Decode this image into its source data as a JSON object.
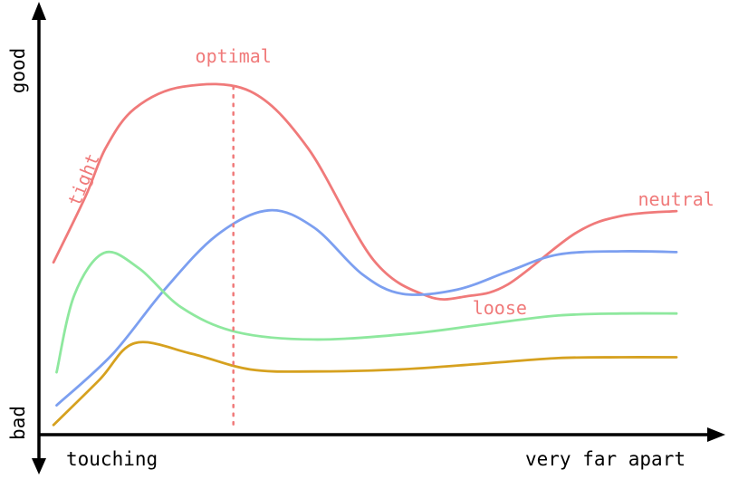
{
  "chart_data": {
    "type": "line",
    "title": "",
    "xlabel_left": "touching",
    "xlabel_right": "very far apart",
    "ylabel_bottom": "bad",
    "ylabel_top": "good",
    "x_range": [
      0,
      1
    ],
    "y_range": [
      0,
      1
    ],
    "grid": false,
    "legend": "none",
    "series": [
      {
        "color": "#f07a7a",
        "points": [
          [
            0.013,
            0.426
          ],
          [
            0.064,
            0.594
          ],
          [
            0.096,
            0.717
          ],
          [
            0.142,
            0.817
          ],
          [
            0.218,
            0.872
          ],
          [
            0.325,
            0.86
          ],
          [
            0.416,
            0.716
          ],
          [
            0.52,
            0.432
          ],
          [
            0.606,
            0.34
          ],
          [
            0.668,
            0.34
          ],
          [
            0.733,
            0.37
          ],
          [
            0.84,
            0.5
          ],
          [
            0.913,
            0.544
          ],
          [
            1.0,
            0.556
          ]
        ]
      },
      {
        "color": "#7c9ff0",
        "points": [
          [
            0.018,
            0.063
          ],
          [
            0.106,
            0.192
          ],
          [
            0.187,
            0.353
          ],
          [
            0.271,
            0.494
          ],
          [
            0.354,
            0.558
          ],
          [
            0.426,
            0.514
          ],
          [
            0.502,
            0.396
          ],
          [
            0.566,
            0.346
          ],
          [
            0.653,
            0.357
          ],
          [
            0.735,
            0.404
          ],
          [
            0.813,
            0.446
          ],
          [
            0.913,
            0.454
          ],
          [
            1.0,
            0.452
          ]
        ]
      },
      {
        "color": "#8ee89e",
        "points": [
          [
            0.018,
            0.147
          ],
          [
            0.046,
            0.343
          ],
          [
            0.093,
            0.45
          ],
          [
            0.149,
            0.41
          ],
          [
            0.216,
            0.311
          ],
          [
            0.303,
            0.249
          ],
          [
            0.426,
            0.23
          ],
          [
            0.579,
            0.245
          ],
          [
            0.702,
            0.27
          ],
          [
            0.813,
            0.291
          ],
          [
            0.913,
            0.296
          ],
          [
            1.0,
            0.296
          ]
        ]
      },
      {
        "color": "#d6a11f",
        "points": [
          [
            0.013,
            0.013
          ],
          [
            0.086,
            0.128
          ],
          [
            0.142,
            0.221
          ],
          [
            0.232,
            0.194
          ],
          [
            0.325,
            0.154
          ],
          [
            0.426,
            0.149
          ],
          [
            0.56,
            0.154
          ],
          [
            0.702,
            0.17
          ],
          [
            0.813,
            0.183
          ],
          [
            0.913,
            0.185
          ],
          [
            1.0,
            0.185
          ]
        ]
      }
    ],
    "reference_line": {
      "x": 0.298,
      "color": "#f07a7a",
      "style": "dotted"
    },
    "annotations": [
      {
        "text": "optimal",
        "x": 0.298,
        "y": 0.933,
        "color": "#f07a7a",
        "rotation": 0,
        "anchor": "middle"
      },
      {
        "text": "tight",
        "x": 0.07,
        "y": 0.63,
        "color": "#f07a7a",
        "rotation": -68,
        "anchor": "middle"
      },
      {
        "text": "neutral",
        "x": 1.06,
        "y": 0.57,
        "color": "#f07a7a",
        "rotation": 0,
        "anchor": "end"
      },
      {
        "text": "loose",
        "x": 0.72,
        "y": 0.294,
        "color": "#f07a7a",
        "rotation": 0,
        "anchor": "middle"
      }
    ]
  }
}
